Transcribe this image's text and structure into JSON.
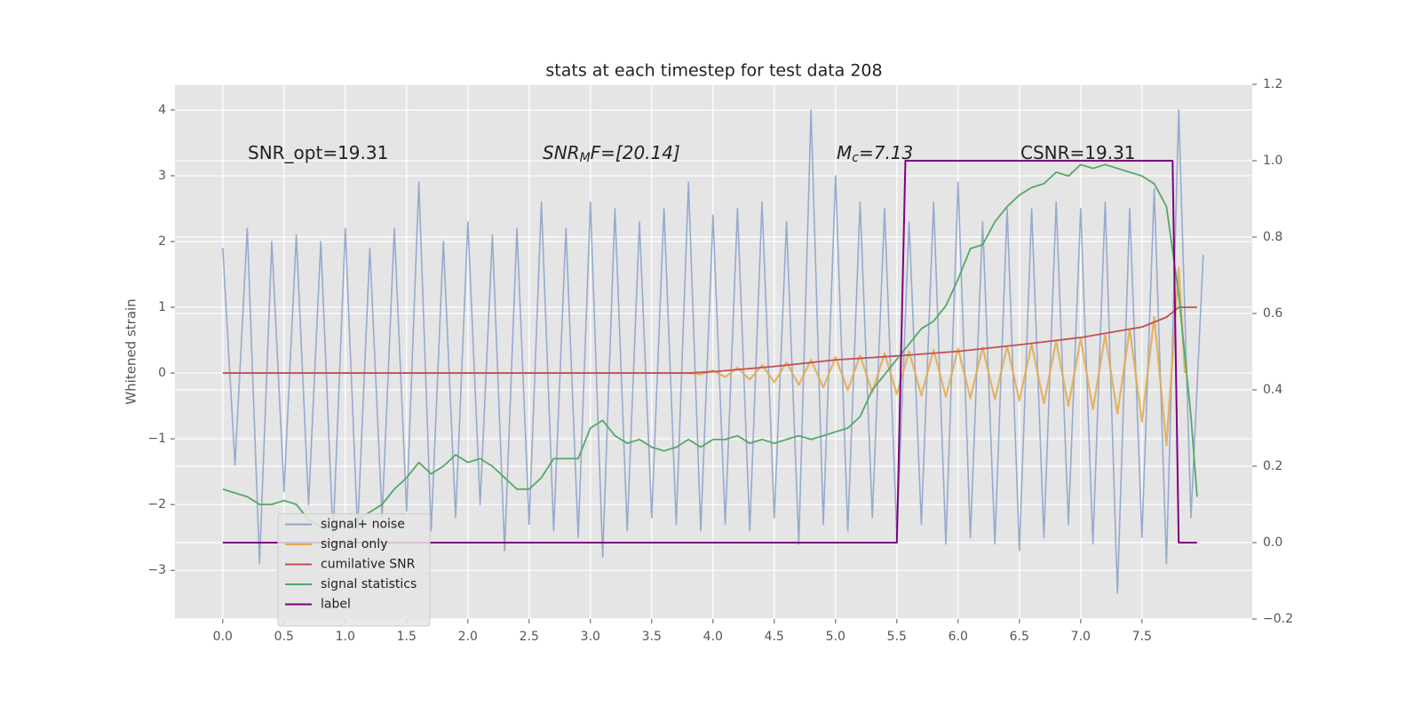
{
  "chart_data": {
    "type": "line",
    "title": "stats at each timestep for test data 208",
    "ylabel": "Whitened strain",
    "xlim": [
      -0.39,
      8.4
    ],
    "ylim": [
      -3.74,
      4.39
    ],
    "y2lim": [
      -0.2,
      1.2
    ],
    "xticks": [
      {
        "value": 0,
        "label": "0.0"
      },
      0.5,
      {
        "value": 1,
        "label": "1.0"
      },
      1.5,
      {
        "value": 2,
        "label": "2.0"
      },
      2.5,
      {
        "value": 3,
        "label": "3.0"
      },
      3.5,
      {
        "value": 4,
        "label": "4.0"
      },
      4.5,
      {
        "value": 5,
        "label": "5.0"
      },
      5.5,
      {
        "value": 6,
        "label": "6.0"
      },
      6.5,
      {
        "value": 7,
        "label": "7.0"
      },
      7.5
    ],
    "yticks": [
      {
        "value": -3,
        "label": "−3"
      },
      {
        "value": -2,
        "label": "−2"
      },
      {
        "value": -1,
        "label": "−1"
      },
      0,
      1,
      2,
      3,
      4
    ],
    "y2ticks": [
      {
        "value": -0.2,
        "label": "−0.2"
      },
      {
        "value": 0,
        "label": "0.0"
      },
      0.2,
      0.4,
      0.6,
      0.8,
      {
        "value": 1,
        "label": "1.0"
      },
      1.2
    ],
    "grid": true,
    "legend": "lower left",
    "annotations": [
      [
        "SNR_opt=19.31"
      ],
      [
        "SNR",
        "M",
        "F=[20.14]"
      ],
      [
        "M",
        "c",
        "=7.13"
      ],
      [
        "CSNR=19.31"
      ]
    ],
    "series": [
      {
        "name": "signal+ noise",
        "color": "#92a6cc",
        "axis": "y",
        "x": [
          0,
          0.1,
          0.2,
          0.3,
          0.4,
          0.5,
          0.6,
          0.7,
          0.8,
          0.9,
          1,
          1.1,
          1.2,
          1.3,
          1.4,
          1.5,
          1.6,
          1.7,
          1.8,
          1.9,
          2,
          2.1,
          2.2,
          2.3,
          2.4,
          2.5,
          2.6,
          2.7,
          2.8,
          2.9,
          3,
          3.1,
          3.2,
          3.3,
          3.4,
          3.5,
          3.6,
          3.7,
          3.8,
          3.9,
          4,
          4.1,
          4.2,
          4.3,
          4.4,
          4.5,
          4.6,
          4.7,
          4.8,
          4.9,
          5,
          5.1,
          5.2,
          5.3,
          5.4,
          5.5,
          5.6,
          5.7,
          5.8,
          5.9,
          6,
          6.1,
          6.2,
          6.3,
          6.4,
          6.5,
          6.6,
          6.7,
          6.8,
          6.9,
          7,
          7.1,
          7.2,
          7.3,
          7.4,
          7.5,
          7.6,
          7.7,
          7.8,
          7.9,
          8
        ],
        "values": [
          1.9,
          -1.4,
          2.2,
          -2.9,
          2.0,
          -1.8,
          2.1,
          -2.0,
          2.0,
          -2.5,
          2.2,
          -2.4,
          1.9,
          -2.2,
          2.2,
          -2.1,
          2.9,
          -2.4,
          2.0,
          -2.2,
          2.3,
          -2.0,
          2.1,
          -2.7,
          2.2,
          -2.3,
          2.6,
          -2.4,
          2.2,
          -2.5,
          2.6,
          -2.8,
          2.5,
          -2.4,
          2.3,
          -2.2,
          2.5,
          -2.3,
          2.9,
          -2.4,
          2.4,
          -2.3,
          2.5,
          -2.4,
          2.6,
          -2.2,
          2.3,
          -2.6,
          4.0,
          -2.3,
          3.0,
          -2.4,
          2.6,
          -2.2,
          2.5,
          -2.5,
          2.3,
          -2.3,
          2.6,
          -2.6,
          2.9,
          -2.5,
          2.3,
          -2.6,
          2.5,
          -2.7,
          2.5,
          -2.5,
          2.6,
          -2.3,
          2.5,
          -2.6,
          2.6,
          -3.35,
          2.5,
          -2.5,
          2.8,
          -2.9,
          4.0,
          -2.2,
          1.8
        ]
      },
      {
        "name": "signal only",
        "color": "#e3aa4e",
        "axis": "y",
        "x": [
          3.8,
          3.9,
          4,
          4.1,
          4.2,
          4.3,
          4.4,
          4.5,
          4.6,
          4.7,
          4.8,
          4.9,
          5,
          5.1,
          5.2,
          5.3,
          5.4,
          5.5,
          5.6,
          5.7,
          5.8,
          5.9,
          6,
          6.1,
          6.2,
          6.3,
          6.4,
          6.5,
          6.6,
          6.7,
          6.8,
          6.9,
          7,
          7.1,
          7.2,
          7.3,
          7.4,
          7.5,
          7.6,
          7.7,
          7.8,
          7.85
        ],
        "values": [
          0,
          -0.02,
          0.04,
          -0.06,
          0.08,
          -0.1,
          0.12,
          -0.14,
          0.16,
          -0.18,
          0.2,
          -0.22,
          0.24,
          -0.26,
          0.27,
          -0.29,
          0.3,
          -0.32,
          0.33,
          -0.34,
          0.35,
          -0.36,
          0.37,
          -0.38,
          0.39,
          -0.4,
          0.41,
          -0.42,
          0.44,
          -0.46,
          0.48,
          -0.5,
          0.52,
          -0.55,
          0.58,
          -0.62,
          0.67,
          -0.74,
          0.85,
          -1.1,
          1.6,
          0
        ]
      },
      {
        "name": "cumilative SNR",
        "color": "#c44e52",
        "axis": "y",
        "x": [
          0,
          3.8,
          4.0,
          4.5,
          5.0,
          5.5,
          6.0,
          6.5,
          7.0,
          7.5,
          7.7,
          7.8,
          7.95
        ],
        "values": [
          0,
          0,
          0.02,
          0.1,
          0.2,
          0.26,
          0.33,
          0.43,
          0.54,
          0.7,
          0.85,
          1.0,
          1.0
        ]
      },
      {
        "name": "signal statistics",
        "color": "#55a868",
        "axis": "y2",
        "x": [
          0,
          0.1,
          0.2,
          0.3,
          0.4,
          0.5,
          0.6,
          0.7,
          0.8,
          0.9,
          1,
          1.1,
          1.2,
          1.3,
          1.4,
          1.5,
          1.6,
          1.7,
          1.8,
          1.9,
          2,
          2.1,
          2.2,
          2.3,
          2.4,
          2.5,
          2.6,
          2.7,
          2.8,
          2.9,
          3,
          3.1,
          3.2,
          3.3,
          3.4,
          3.5,
          3.6,
          3.7,
          3.8,
          3.9,
          4,
          4.1,
          4.2,
          4.3,
          4.4,
          4.5,
          4.6,
          4.7,
          4.8,
          4.9,
          5,
          5.1,
          5.2,
          5.3,
          5.4,
          5.5,
          5.6,
          5.7,
          5.8,
          5.9,
          6,
          6.1,
          6.2,
          6.3,
          6.4,
          6.5,
          6.6,
          6.7,
          6.8,
          6.9,
          7,
          7.1,
          7.2,
          7.3,
          7.4,
          7.5,
          7.6,
          7.7,
          7.8,
          7.9,
          7.95
        ],
        "values": [
          0.14,
          0.13,
          0.12,
          0.1,
          0.1,
          0.11,
          0.1,
          0.06,
          0.04,
          0.04,
          0.05,
          0.06,
          0.08,
          0.1,
          0.14,
          0.17,
          0.21,
          0.18,
          0.2,
          0.23,
          0.21,
          0.22,
          0.2,
          0.17,
          0.14,
          0.14,
          0.17,
          0.22,
          0.22,
          0.22,
          0.3,
          0.32,
          0.28,
          0.26,
          0.27,
          0.25,
          0.24,
          0.25,
          0.27,
          0.25,
          0.27,
          0.27,
          0.28,
          0.26,
          0.27,
          0.26,
          0.27,
          0.28,
          0.27,
          0.28,
          0.29,
          0.3,
          0.33,
          0.4,
          0.44,
          0.48,
          0.52,
          0.56,
          0.58,
          0.62,
          0.69,
          0.77,
          0.78,
          0.84,
          0.88,
          0.91,
          0.93,
          0.94,
          0.97,
          0.96,
          0.99,
          0.98,
          0.99,
          0.98,
          0.97,
          0.96,
          0.94,
          0.88,
          0.65,
          0.33,
          0.12
        ]
      },
      {
        "name": "label",
        "color": "#800080",
        "axis": "y2",
        "x": [
          0,
          5.5,
          5.57,
          7.75,
          7.8,
          7.95
        ],
        "values": [
          0,
          0,
          1,
          1,
          0,
          0
        ]
      }
    ]
  }
}
